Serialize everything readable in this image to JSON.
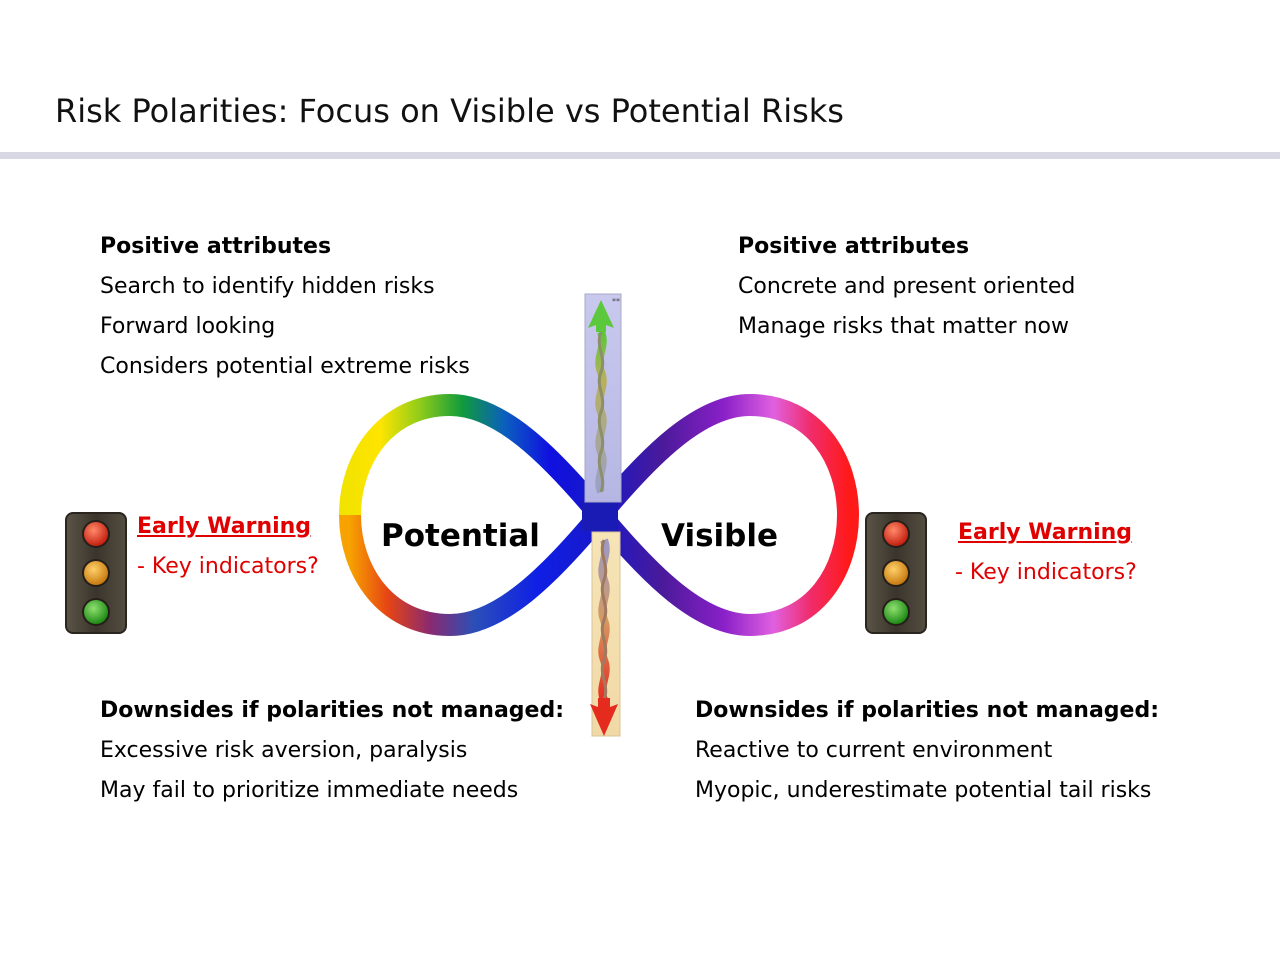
{
  "slide": {
    "title": "Risk Polarities: Focus on Visible vs Potential Risks"
  },
  "potential": {
    "label": "Potential",
    "positive": {
      "heading": "Positive attributes",
      "items": [
        "Search to identify hidden risks",
        "Forward looking",
        "Considers potential extreme risks"
      ]
    },
    "downsides": {
      "heading": "Downsides if polarities not managed:",
      "items": [
        "Excessive risk aversion, paralysis",
        "May fail to prioritize immediate needs"
      ]
    },
    "early_warning": {
      "title": "Early Warning",
      "subtitle": "- Key indicators?"
    }
  },
  "visible": {
    "label": "Visible",
    "positive": {
      "heading": "Positive attributes",
      "items": [
        "Concrete and present oriented",
        "Manage risks that matter now"
      ]
    },
    "downsides": {
      "heading": "Downsides if polarities not managed:",
      "items": [
        "Reactive to current environment",
        "Myopic, underestimate potential tail risks"
      ]
    },
    "early_warning": {
      "title": "Early Warning",
      "subtitle": "- Key indicators?"
    }
  },
  "arrow": {
    "marker": "**"
  },
  "colors": {
    "early_warning": "#e00000",
    "light_red": "#e23b1c",
    "light_amber": "#d98a12",
    "light_green": "#2f9a22"
  },
  "icons": [
    "traffic-light-icon",
    "infinity-loop-icon",
    "double-arrow-icon"
  ]
}
